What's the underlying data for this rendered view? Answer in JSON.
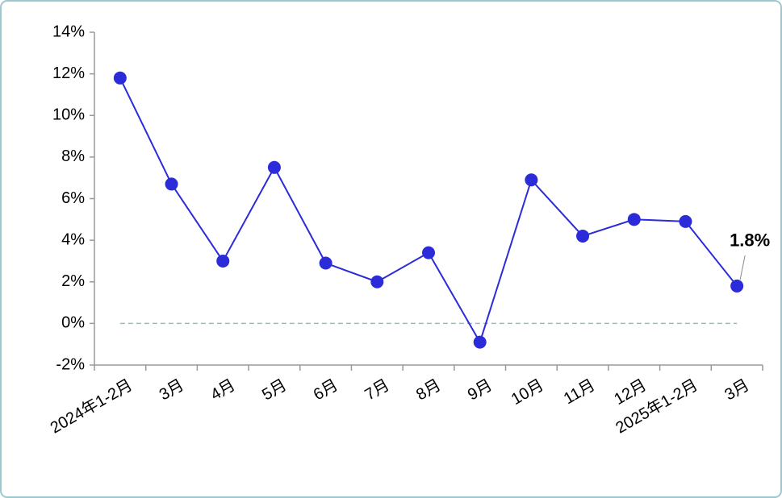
{
  "chart_data": {
    "type": "line",
    "categories": [
      "2024年1-2月",
      "3月",
      "4月",
      "5月",
      "6月",
      "7月",
      "8月",
      "9月",
      "10月",
      "11月",
      "12月",
      "2025年1-2月",
      "3月"
    ],
    "values": [
      11.8,
      6.7,
      3.0,
      7.5,
      2.9,
      2.0,
      3.4,
      -0.9,
      6.9,
      4.2,
      5.0,
      4.9,
      1.8
    ],
    "value_labels": [
      null,
      null,
      null,
      null,
      null,
      null,
      null,
      null,
      null,
      null,
      null,
      null,
      "1.8%"
    ],
    "color": "#2b2bd9",
    "ylim": [
      -2,
      14
    ],
    "yticks": [
      {
        "value": -2,
        "label": "-2%"
      },
      {
        "value": 0,
        "label": "0%"
      },
      {
        "value": 2,
        "label": "2%"
      },
      {
        "value": 4,
        "label": "4%"
      },
      {
        "value": 6,
        "label": "6%"
      },
      {
        "value": 8,
        "label": "8%"
      },
      {
        "value": 10,
        "label": "10%"
      },
      {
        "value": 12,
        "label": "12%"
      },
      {
        "value": 14,
        "label": "14%"
      }
    ],
    "zero_line": true
  }
}
